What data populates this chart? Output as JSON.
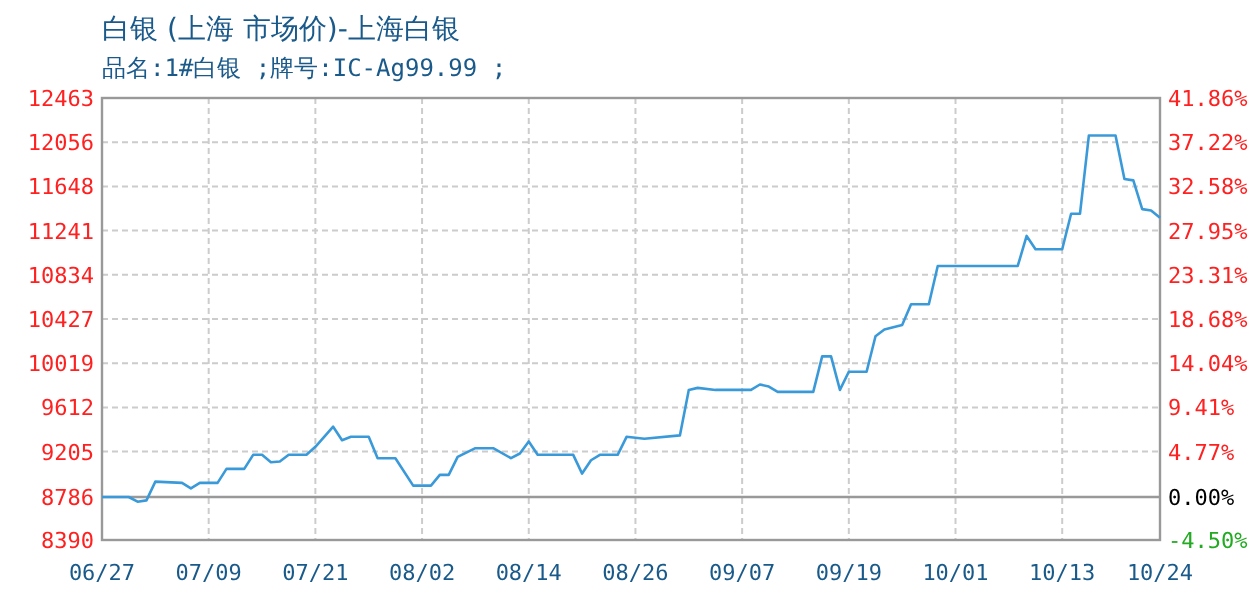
{
  "chart_data": {
    "type": "line",
    "title": "白银 (上海 市场价)-上海白银",
    "subtitle": "品名:1#白银 ;牌号:IC-Ag99.99 ;",
    "x": [
      "--06-27",
      "--06-30",
      "--07-01",
      "--07-02",
      "--07-03",
      "--07-06",
      "--07-07",
      "--07-08",
      "--07-10",
      "--07-11",
      "--07-13",
      "--07-14",
      "--07-15",
      "--07-16",
      "--07-17",
      "--07-18",
      "--07-20",
      "--07-21",
      "--07-23",
      "--07-24",
      "--07-25",
      "--07-27",
      "--07-28",
      "--07-30",
      "--08-01",
      "--08-03",
      "--08-04",
      "--08-05",
      "--08-06",
      "--08-08",
      "--08-10",
      "--08-12",
      "--08-13",
      "--08-14",
      "--08-15",
      "--08-19",
      "--08-20",
      "--08-21",
      "--08-22",
      "--08-24",
      "--08-25",
      "--08-27",
      "--08-31",
      "--09-01",
      "--09-02",
      "--09-04",
      "--09-08",
      "--09-09",
      "--09-10",
      "--09-11",
      "--09-15",
      "--09-16",
      "--09-17",
      "--09-18",
      "--09-19",
      "--09-21",
      "--09-22",
      "--09-23",
      "--09-25",
      "--09-26",
      "--09-28",
      "--09-29",
      "--10-08",
      "--10-09",
      "--10-10",
      "--10-13",
      "--10-14",
      "--10-15",
      "--10-16",
      "--10-19",
      "--10-20",
      "--10-21",
      "--10-22",
      "--10-23",
      "--10-24"
    ],
    "series": [
      {
        "color": "#3a9ad9",
        "values": [
          8786,
          8786,
          8743,
          8755,
          8928,
          8916,
          8866,
          8916,
          8916,
          9045,
          9045,
          9175,
          9175,
          9107,
          9113,
          9175,
          9175,
          9249,
          9434,
          9310,
          9341,
          9341,
          9144,
          9144,
          8891,
          8891,
          8990,
          8990,
          9156,
          9236,
          9236,
          9144,
          9187,
          9298,
          9175,
          9175,
          9002,
          9125,
          9175,
          9175,
          9341,
          9323,
          9354,
          9773,
          9792,
          9773,
          9773,
          9823,
          9804,
          9755,
          9755,
          10082,
          10082,
          9773,
          9940,
          9940,
          10267,
          10329,
          10372,
          10563,
          10563,
          10915,
          10915,
          11192,
          11069,
          11069,
          11396,
          11396,
          12118,
          12118,
          11717,
          11704,
          11439,
          11427,
          11359
        ]
      }
    ],
    "xlim": [
      "--06-27",
      "--10-24"
    ],
    "xticks": [
      {
        "value": "--06-27",
        "label": "06/27"
      },
      {
        "value": "--07-09",
        "label": "07/09"
      },
      {
        "value": "--07-21",
        "label": "07/21"
      },
      {
        "value": "--08-02",
        "label": "08/02"
      },
      {
        "value": "--08-14",
        "label": "08/14"
      },
      {
        "value": "--08-26",
        "label": "08/26"
      },
      {
        "value": "--09-07",
        "label": "09/07"
      },
      {
        "value": "--09-19",
        "label": "09/19"
      },
      {
        "value": "--10-01",
        "label": "10/01"
      },
      {
        "value": "--10-13",
        "label": "10/13"
      },
      {
        "value": "--10-24",
        "label": "10/24"
      }
    ],
    "ylim": [
      8390,
      12463
    ],
    "yticks": [
      8390,
      8786,
      9205,
      9612,
      10019,
      10427,
      10834,
      11241,
      11648,
      12056,
      12463
    ],
    "y2lim": [
      -4.5,
      41.86
    ],
    "y2ticks": [
      {
        "value": -4.5,
        "label": "-4.50%"
      },
      {
        "value": 0,
        "label": "0.00%"
      },
      {
        "value": 4.77,
        "label": "4.77%"
      },
      {
        "value": 9.41,
        "label": "9.41%"
      },
      {
        "value": 14.04,
        "label": "14.04%"
      },
      {
        "value": 18.68,
        "label": "18.68%"
      },
      {
        "value": 23.31,
        "label": "23.31%"
      },
      {
        "value": 27.95,
        "label": "27.95%"
      },
      {
        "value": 32.58,
        "label": "32.58%"
      },
      {
        "value": 37.22,
        "label": "37.22%"
      },
      {
        "value": 41.86,
        "label": "41.86%"
      }
    ],
    "grid": true,
    "ref_lines": [
      {
        "axis": "y",
        "value": 8786,
        "color": "#999999",
        "line_style": "solid"
      }
    ]
  }
}
